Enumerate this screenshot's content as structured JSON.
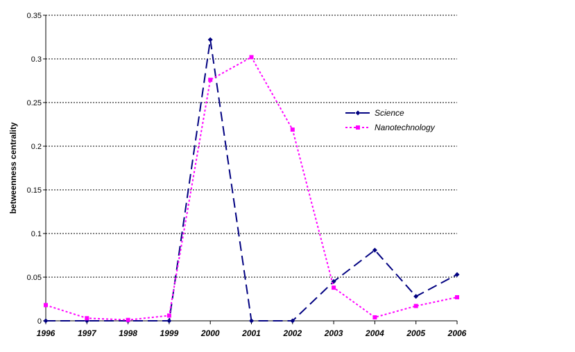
{
  "chart_data": {
    "type": "line",
    "title": "",
    "xlabel": "",
    "ylabel": "betweenness centrality",
    "categories": [
      "1996",
      "1997",
      "1998",
      "1999",
      "2000",
      "2001",
      "2002",
      "2003",
      "2004",
      "2005",
      "2006"
    ],
    "ylim": [
      0,
      0.35
    ],
    "yticks": [
      "0",
      "0.05",
      "0.1",
      "0.15",
      "0.2",
      "0.25",
      "0.3",
      "0.35"
    ],
    "grid": true,
    "legend_position": "right",
    "series": [
      {
        "name": "Science",
        "color": "#000080",
        "marker": "diamond",
        "line_style": "long-dash",
        "values": [
          0,
          0,
          0,
          0,
          0.322,
          0,
          0,
          0.045,
          0.081,
          0.028,
          0.053
        ]
      },
      {
        "name": "Nanotechnology",
        "color": "#ff00ff",
        "marker": "square",
        "line_style": "dotted",
        "values": [
          0.018,
          0.003,
          0.001,
          0.006,
          0.276,
          0.302,
          0.219,
          0.038,
          0.004,
          0.017,
          0.027
        ]
      }
    ]
  }
}
